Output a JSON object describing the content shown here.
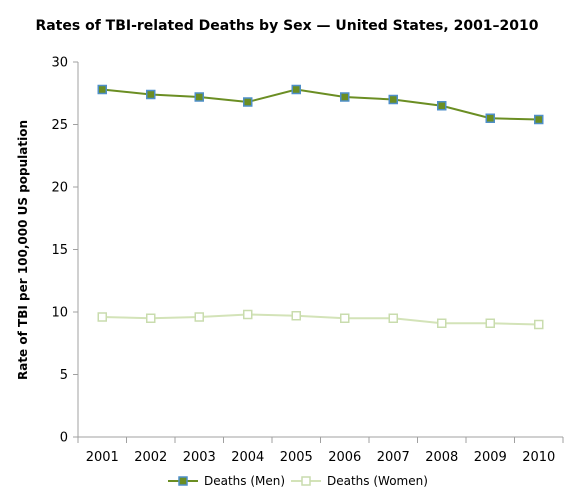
{
  "chart_data": {
    "type": "line",
    "title": "Rates of TBI-related Deaths by Sex — United States, 2001–2010",
    "xlabel": "",
    "ylabel": "Rate of TBI per 100,000 US population",
    "categories": [
      "2001",
      "2002",
      "2003",
      "2004",
      "2005",
      "2006",
      "2007",
      "2008",
      "2009",
      "2010"
    ],
    "ylim": [
      0,
      30
    ],
    "yticks": [
      "0",
      "5",
      "10",
      "15",
      "20",
      "25",
      "30"
    ],
    "grid": false,
    "legend_position": "bottom",
    "series": [
      {
        "name": "Deaths (Men)",
        "values": [
          27.8,
          27.4,
          27.2,
          26.8,
          27.8,
          27.2,
          27.0,
          26.5,
          25.5,
          25.4
        ],
        "line_color": "#6b8e23",
        "marker_fill": "#6b8e23",
        "marker_stroke": "#4f8fc8"
      },
      {
        "name": "Deaths (Women)",
        "values": [
          9.6,
          9.5,
          9.6,
          9.8,
          9.7,
          9.5,
          9.5,
          9.1,
          9.1,
          9.0
        ],
        "line_color": "#d3e3b8",
        "marker_fill": "#ffffff",
        "marker_stroke": "#c9dcae"
      }
    ]
  }
}
